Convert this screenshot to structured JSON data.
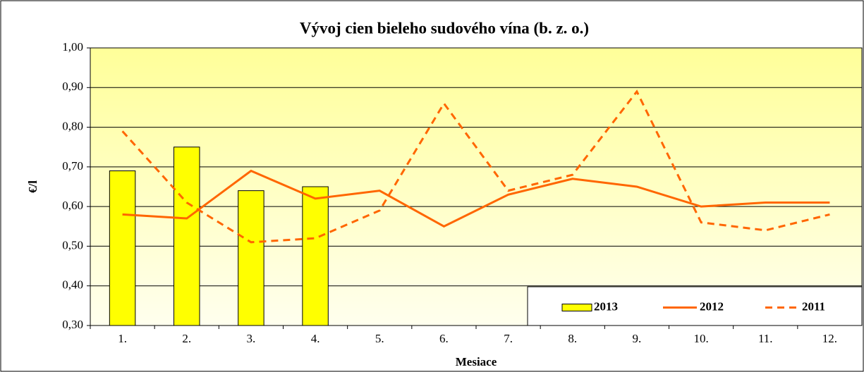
{
  "chart_data": {
    "type": "combo",
    "title": "Vývoj cien bieleho sudového vína (b. z. o.)",
    "x_label": "Mesiace",
    "y_label": "€/l",
    "categories": [
      "1.",
      "2.",
      "3.",
      "4.",
      "5.",
      "6.",
      "7.",
      "8.",
      "9.",
      "10.",
      "11.",
      "12."
    ],
    "series": [
      {
        "name": "2013",
        "type": "bar",
        "color": "#ffff00",
        "values": [
          0.69,
          0.75,
          0.64,
          0.65,
          null,
          null,
          null,
          null,
          null,
          null,
          null,
          null
        ]
      },
      {
        "name": "2012",
        "type": "line",
        "color": "#ff6600",
        "values": [
          0.58,
          0.57,
          0.69,
          0.62,
          0.64,
          0.55,
          0.63,
          0.67,
          0.65,
          0.6,
          0.61,
          0.61
        ]
      },
      {
        "name": "2011",
        "type": "line",
        "dashed": true,
        "color": "#ff6600",
        "values": [
          0.79,
          0.61,
          0.51,
          0.52,
          0.59,
          0.86,
          0.64,
          0.68,
          0.89,
          0.56,
          0.54,
          0.58
        ]
      }
    ],
    "ylim": [
      0.3,
      1.0
    ],
    "yticks": [
      {
        "value": 0.3,
        "label": "0,30"
      },
      {
        "value": 0.4,
        "label": "0,40"
      },
      {
        "value": 0.5,
        "label": "0,50"
      },
      {
        "value": 0.6,
        "label": "0,60"
      },
      {
        "value": 0.7,
        "label": "0,70"
      },
      {
        "value": 0.8,
        "label": "0,80"
      },
      {
        "value": 0.9,
        "label": "0,90"
      },
      {
        "value": 1.0,
        "label": "1,00"
      }
    ],
    "grid": true,
    "legend": "lower right"
  }
}
